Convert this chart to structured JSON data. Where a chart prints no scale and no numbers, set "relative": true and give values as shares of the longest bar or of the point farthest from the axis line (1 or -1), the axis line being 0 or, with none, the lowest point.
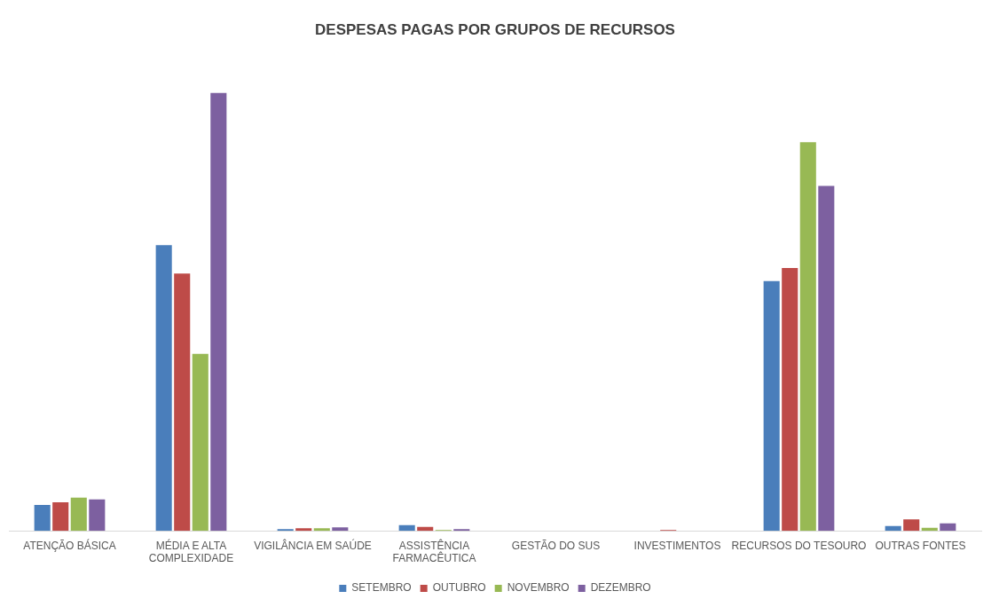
{
  "chart_data": {
    "type": "bar",
    "title": "DESPESAS PAGAS POR GRUPOS DE RECURSOS",
    "relative": true,
    "categories": [
      "ATENÇÃO BÁSICA",
      "MÉDIA E ALTA COMPLEXIDADE",
      "VIGILÂNCIA EM SAÚDE",
      "ASSISTÊNCIA FARMACÊUTICA",
      "GESTÃO DO SUS",
      "INVESTIMENTOS",
      "RECURSOS DO TESOURO",
      "OUTRAS FONTES"
    ],
    "series": [
      {
        "name": "SETEMBRO",
        "color": "#4a7ebb",
        "values": [
          0.059,
          0.652,
          0.004,
          0.013,
          0,
          0,
          0.57,
          0.011
        ]
      },
      {
        "name": "OUTUBRO",
        "color": "#be4b48",
        "values": [
          0.065,
          0.587,
          0.006,
          0.009,
          0,
          0.002,
          0.6,
          0.026
        ]
      },
      {
        "name": "NOVEMBRO",
        "color": "#98b954",
        "values": [
          0.076,
          0.404,
          0.006,
          0.002,
          0,
          0,
          0.887,
          0.007
        ]
      },
      {
        "name": "DEZEMBRO",
        "color": "#7d60a0",
        "values": [
          0.072,
          1,
          0.008,
          0.004,
          0,
          0,
          0.787,
          0.017
        ]
      }
    ],
    "grid": false,
    "legend": "bottom"
  }
}
